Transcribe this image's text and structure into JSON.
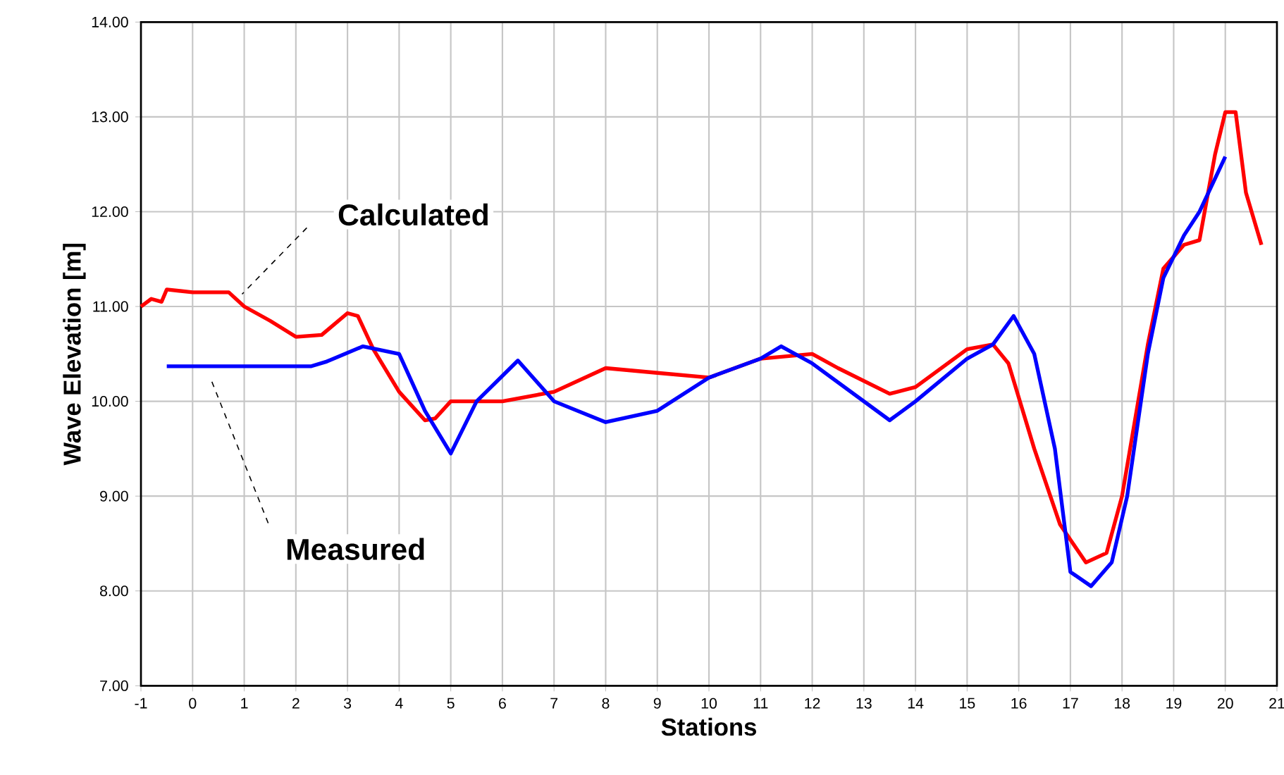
{
  "chart_data": {
    "type": "line",
    "xlabel": "Stations",
    "ylabel": "Wave Elevation [m]",
    "xlim": [
      -1,
      21
    ],
    "xticks": [
      -1,
      0,
      1,
      2,
      3,
      4,
      5,
      6,
      7,
      8,
      9,
      10,
      11,
      12,
      13,
      14,
      15,
      16,
      17,
      18,
      19,
      20,
      21
    ],
    "ylim": [
      7,
      14
    ],
    "yticks": [
      {
        "value": 7,
        "label": "7.00"
      },
      {
        "value": 8,
        "label": "8.00"
      },
      {
        "value": 9,
        "label": "9.00"
      },
      {
        "value": 10,
        "label": "10.00"
      },
      {
        "value": 11,
        "label": "11.00"
      },
      {
        "value": 12,
        "label": "12.00"
      },
      {
        "value": 13,
        "label": "13.00"
      },
      {
        "value": 14,
        "label": "14.00"
      }
    ],
    "grid": true,
    "legend": false,
    "marker": "none",
    "line_style": "solid",
    "series": [
      {
        "name": "Calculated",
        "color": "#ff0000",
        "x": [
          -1,
          -0.8,
          -0.6,
          -0.5,
          0,
          0.7,
          1,
          1.5,
          2,
          2.5,
          3,
          3.2,
          3.5,
          4,
          4.5,
          4.7,
          5,
          6,
          7,
          8,
          9,
          10,
          11,
          12,
          12.5,
          13.5,
          14,
          15,
          15.5,
          15.8,
          16.3,
          16.8,
          17.3,
          17.7,
          18,
          18.5,
          18.8,
          19.2,
          19.5,
          19.8,
          20,
          20.2,
          20.4,
          20.7
        ],
        "values": [
          11.0,
          11.08,
          11.05,
          11.18,
          11.15,
          11.15,
          11.0,
          10.85,
          10.68,
          10.7,
          10.93,
          10.9,
          10.55,
          10.1,
          9.8,
          9.82,
          10.0,
          10.0,
          10.1,
          10.35,
          10.3,
          10.25,
          10.45,
          10.5,
          10.35,
          10.08,
          10.15,
          10.55,
          10.6,
          10.4,
          9.5,
          8.7,
          8.3,
          8.4,
          9.0,
          10.6,
          11.4,
          11.65,
          11.7,
          12.6,
          13.05,
          13.05,
          12.2,
          11.65
        ]
      },
      {
        "name": "Measured",
        "color": "#0000ff",
        "x": [
          -0.5,
          2.3,
          2.6,
          3.3,
          4,
          4.5,
          5,
          5.5,
          6.3,
          7,
          8,
          9,
          10,
          11,
          11.4,
          12,
          13,
          13.5,
          14,
          15,
          15.5,
          15.9,
          16.3,
          16.7,
          17,
          17.4,
          17.8,
          18.1,
          18.5,
          18.8,
          19.2,
          19.5,
          20
        ],
        "values": [
          10.37,
          10.37,
          10.42,
          10.58,
          10.5,
          9.9,
          9.45,
          10.0,
          10.43,
          10.0,
          9.78,
          9.9,
          10.25,
          10.45,
          10.58,
          10.4,
          10.0,
          9.8,
          10.0,
          10.45,
          10.6,
          10.9,
          10.5,
          9.5,
          8.2,
          8.05,
          8.3,
          9.0,
          10.5,
          11.3,
          11.75,
          12.0,
          12.58
        ]
      }
    ]
  }
}
